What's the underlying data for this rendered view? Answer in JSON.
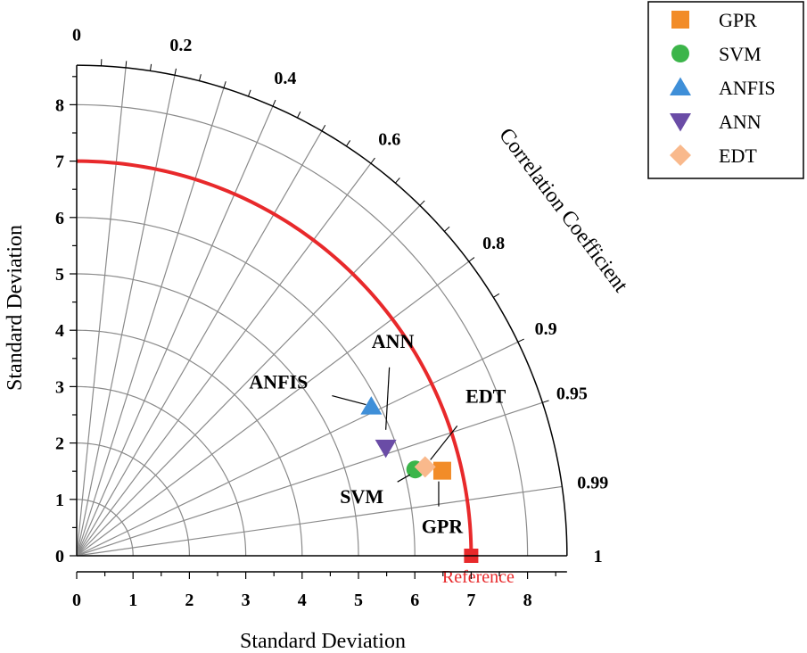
{
  "chart_data": {
    "type": "taylor",
    "title": "",
    "xlabel": "Standard Deviation",
    "ylabel": "Standard Deviation",
    "corr_axis_label": "Correlation Coefficient",
    "std_ticks": [
      "0",
      "1",
      "2",
      "3",
      "4",
      "5",
      "6",
      "7",
      "8"
    ],
    "std_max": 8.7,
    "corr_ticks": [
      {
        "value": 0,
        "label": "0"
      },
      {
        "value": 0.2,
        "label": "0.2"
      },
      {
        "value": 0.4,
        "label": "0.4"
      },
      {
        "value": 0.6,
        "label": "0.6"
      },
      {
        "value": 0.8,
        "label": "0.8"
      },
      {
        "value": 0.9,
        "label": "0.9"
      },
      {
        "value": 0.95,
        "label": "0.95"
      },
      {
        "value": 0.99,
        "label": "0.99"
      },
      {
        "value": 1,
        "label": "1"
      }
    ],
    "reference": {
      "label": "Reference",
      "std": 7.0,
      "corr": 1.0,
      "color": "#e8292b"
    },
    "models": [
      {
        "name": "GPR",
        "annotation": "GPR",
        "std": 6.66,
        "corr": 0.974,
        "marker": "square",
        "color": "#f28c28"
      },
      {
        "name": "SVM",
        "annotation": "SVM",
        "std": 6.2,
        "corr": 0.969,
        "marker": "circle",
        "color": "#3cb54a"
      },
      {
        "name": "ANFIS",
        "annotation": "ANFIS",
        "std": 5.86,
        "corr": 0.892,
        "marker": "triangle-up",
        "color": "#3f8fd8"
      },
      {
        "name": "ANN",
        "annotation": "ANN",
        "std": 5.81,
        "corr": 0.944,
        "marker": "triangle-down",
        "color": "#6a4ca6"
      },
      {
        "name": "EDT",
        "annotation": "EDT",
        "std": 6.38,
        "corr": 0.969,
        "marker": "diamond",
        "color": "#f9b98c"
      }
    ]
  },
  "legend": {
    "items": [
      {
        "label": "GPR",
        "marker": "square",
        "color": "#f28c28"
      },
      {
        "label": "SVM",
        "marker": "circle",
        "color": "#3cb54a"
      },
      {
        "label": "ANFIS",
        "marker": "triangle-up",
        "color": "#3f8fd8"
      },
      {
        "label": "ANN",
        "marker": "triangle-down",
        "color": "#6a4ca6"
      },
      {
        "label": "EDT",
        "marker": "diamond",
        "color": "#f9b98c"
      }
    ]
  }
}
